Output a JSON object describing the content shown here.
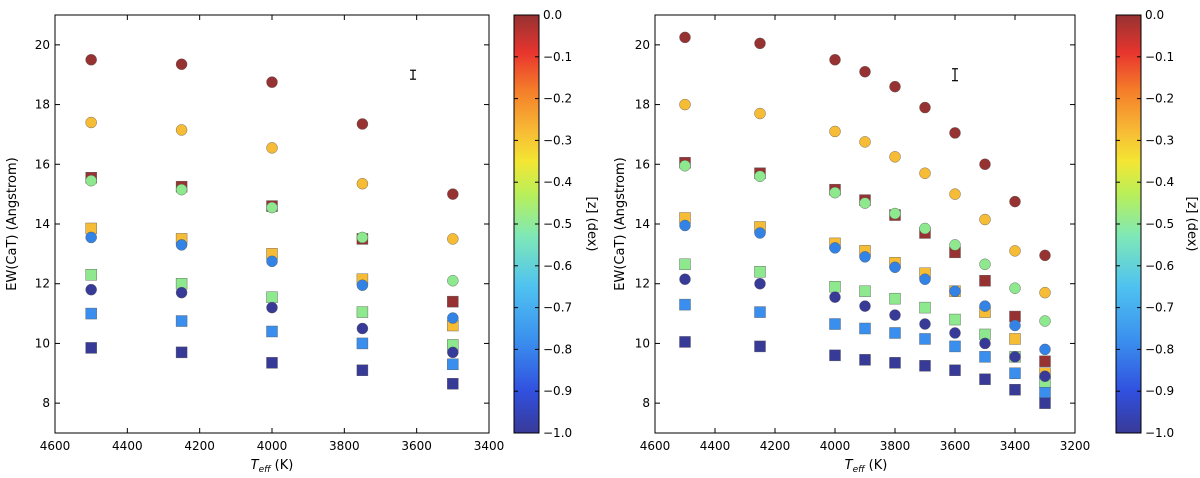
{
  "chart_data": [
    {
      "type": "scatter",
      "id": "left",
      "xlabel_main": "T",
      "xlabel_sub": "eff",
      "xlabel_unit": "(K)",
      "ylabel": "EW(CaT) (Angstrom)",
      "xlim": [
        4600,
        3400
      ],
      "ylim": [
        7,
        21
      ],
      "xticks": [
        4600,
        4400,
        4200,
        4000,
        3800,
        3600,
        3400
      ],
      "yticks": [
        8,
        10,
        12,
        14,
        16,
        18,
        20
      ],
      "errorbar": {
        "x": 3610,
        "y": 19.0,
        "dy": 0.15
      },
      "series": [
        {
          "name": "circles, z=0.0",
          "marker": "circle",
          "color": "#963232",
          "points": [
            [
              4500,
              19.5
            ],
            [
              4250,
              19.35
            ],
            [
              4000,
              18.75
            ],
            [
              3750,
              17.35
            ],
            [
              3500,
              15.0
            ]
          ]
        },
        {
          "name": "circles, z=-0.3",
          "marker": "circle",
          "color": "#f7bc35",
          "points": [
            [
              4500,
              17.4
            ],
            [
              4250,
              17.15
            ],
            [
              4000,
              16.55
            ],
            [
              3750,
              15.35
            ],
            [
              3500,
              13.5
            ]
          ]
        },
        {
          "name": "squares, z=0.0",
          "marker": "square",
          "color": "#963232",
          "points": [
            [
              4500,
              15.55
            ],
            [
              4250,
              15.25
            ],
            [
              4000,
              14.6
            ],
            [
              3750,
              13.5
            ],
            [
              3500,
              11.4
            ]
          ]
        },
        {
          "name": "circles, z=-0.5",
          "marker": "circle",
          "color": "#8ee88e",
          "points": [
            [
              4500,
              15.45
            ],
            [
              4250,
              15.15
            ],
            [
              4000,
              14.55
            ],
            [
              3750,
              13.55
            ],
            [
              3500,
              12.1
            ]
          ]
        },
        {
          "name": "squares, z=-0.3",
          "marker": "square",
          "color": "#f7bc35",
          "points": [
            [
              4500,
              13.85
            ],
            [
              4250,
              13.5
            ],
            [
              4000,
              13.0
            ],
            [
              3750,
              12.15
            ],
            [
              3500,
              10.6
            ]
          ]
        },
        {
          "name": "circles, z=-0.75",
          "marker": "circle",
          "color": "#3383e6",
          "points": [
            [
              4500,
              13.55
            ],
            [
              4250,
              13.3
            ],
            [
              4000,
              12.75
            ],
            [
              3750,
              11.95
            ],
            [
              3500,
              10.85
            ]
          ]
        },
        {
          "name": "squares, z=-0.5",
          "marker": "square",
          "color": "#8ee88e",
          "points": [
            [
              4500,
              12.3
            ],
            [
              4250,
              12.0
            ],
            [
              4000,
              11.55
            ],
            [
              3750,
              11.05
            ],
            [
              3500,
              9.95
            ]
          ]
        },
        {
          "name": "circles, z=-1.0",
          "marker": "circle",
          "color": "#383a98",
          "points": [
            [
              4500,
              11.8
            ],
            [
              4250,
              11.7
            ],
            [
              4000,
              11.2
            ],
            [
              3750,
              10.5
            ],
            [
              3500,
              9.7
            ]
          ]
        },
        {
          "name": "squares, z=-0.75",
          "marker": "square",
          "color": "#3a8fee",
          "points": [
            [
              4500,
              11.0
            ],
            [
              4250,
              10.75
            ],
            [
              4000,
              10.4
            ],
            [
              3750,
              10.0
            ],
            [
              3500,
              9.3
            ]
          ]
        },
        {
          "name": "squares, z=-1.0",
          "marker": "square",
          "color": "#383a98",
          "points": [
            [
              4500,
              9.85
            ],
            [
              4250,
              9.7
            ],
            [
              4000,
              9.35
            ],
            [
              3750,
              9.1
            ],
            [
              3500,
              8.65
            ]
          ]
        }
      ],
      "colorbar": {
        "label": "[z] (dex)",
        "ticks": [
          "0.0",
          "−0.1",
          "−0.2",
          "−0.3",
          "−0.4",
          "−0.5",
          "−0.6",
          "−0.7",
          "−0.8",
          "−0.9",
          "−1.0"
        ]
      }
    },
    {
      "type": "scatter",
      "id": "right",
      "xlabel_main": "T",
      "xlabel_sub": "eff",
      "xlabel_unit": "(K)",
      "ylabel": "EW(CaT) (Angstrom)",
      "xlim": [
        4600,
        3200
      ],
      "ylim": [
        7,
        21
      ],
      "xticks": [
        4600,
        4400,
        4200,
        4000,
        3800,
        3600,
        3400,
        3200
      ],
      "yticks": [
        8,
        10,
        12,
        14,
        16,
        18,
        20
      ],
      "errorbar": {
        "x": 3600,
        "y": 19.0,
        "dy": 0.2
      },
      "series": [
        {
          "name": "circles, z=0.0",
          "marker": "circle",
          "color": "#963232",
          "points": [
            [
              4500,
              20.25
            ],
            [
              4250,
              20.05
            ],
            [
              4000,
              19.5
            ],
            [
              3900,
              19.1
            ],
            [
              3800,
              18.6
            ],
            [
              3700,
              17.9
            ],
            [
              3600,
              17.05
            ],
            [
              3500,
              16.0
            ],
            [
              3400,
              14.75
            ],
            [
              3300,
              12.95
            ]
          ]
        },
        {
          "name": "circles, z=-0.3",
          "marker": "circle",
          "color": "#f7bc35",
          "points": [
            [
              4500,
              18.0
            ],
            [
              4250,
              17.7
            ],
            [
              4000,
              17.1
            ],
            [
              3900,
              16.75
            ],
            [
              3800,
              16.25
            ],
            [
              3700,
              15.7
            ],
            [
              3600,
              15.0
            ],
            [
              3500,
              14.15
            ],
            [
              3400,
              13.1
            ],
            [
              3300,
              11.7
            ]
          ]
        },
        {
          "name": "squares, z=0.0",
          "marker": "square",
          "color": "#963232",
          "points": [
            [
              4500,
              16.05
            ],
            [
              4250,
              15.7
            ],
            [
              4000,
              15.15
            ],
            [
              3900,
              14.8
            ],
            [
              3800,
              14.3
            ],
            [
              3700,
              13.7
            ],
            [
              3600,
              13.05
            ],
            [
              3500,
              12.1
            ],
            [
              3400,
              10.9
            ],
            [
              3300,
              9.4
            ]
          ]
        },
        {
          "name": "circles, z=-0.5",
          "marker": "circle",
          "color": "#8ee88e",
          "points": [
            [
              4500,
              15.95
            ],
            [
              4250,
              15.6
            ],
            [
              4000,
              15.05
            ],
            [
              3900,
              14.7
            ],
            [
              3800,
              14.35
            ],
            [
              3700,
              13.85
            ],
            [
              3600,
              13.3
            ],
            [
              3500,
              12.65
            ],
            [
              3400,
              11.85
            ],
            [
              3300,
              10.75
            ]
          ]
        },
        {
          "name": "squares, z=-0.3",
          "marker": "square",
          "color": "#f7bc35",
          "points": [
            [
              4500,
              14.2
            ],
            [
              4250,
              13.9
            ],
            [
              4000,
              13.35
            ],
            [
              3900,
              13.1
            ],
            [
              3800,
              12.7
            ],
            [
              3700,
              12.35
            ],
            [
              3600,
              11.75
            ],
            [
              3500,
              11.05
            ],
            [
              3400,
              10.15
            ],
            [
              3300,
              9.0
            ]
          ]
        },
        {
          "name": "circles, z=-0.75",
          "marker": "circle",
          "color": "#3383e6",
          "points": [
            [
              4500,
              13.95
            ],
            [
              4250,
              13.7
            ],
            [
              4000,
              13.2
            ],
            [
              3900,
              12.9
            ],
            [
              3800,
              12.55
            ],
            [
              3700,
              12.15
            ],
            [
              3600,
              11.75
            ],
            [
              3500,
              11.25
            ],
            [
              3400,
              10.6
            ],
            [
              3300,
              9.8
            ]
          ]
        },
        {
          "name": "squares, z=-0.5",
          "marker": "square",
          "color": "#8ee88e",
          "points": [
            [
              4500,
              12.65
            ],
            [
              4250,
              12.4
            ],
            [
              4000,
              11.9
            ],
            [
              3900,
              11.75
            ],
            [
              3800,
              11.5
            ],
            [
              3700,
              11.2
            ],
            [
              3600,
              10.8
            ],
            [
              3500,
              10.3
            ],
            [
              3400,
              9.55
            ],
            [
              3300,
              8.7
            ]
          ]
        },
        {
          "name": "circles, z=-1.0",
          "marker": "circle",
          "color": "#383a98",
          "points": [
            [
              4500,
              12.15
            ],
            [
              4250,
              12.0
            ],
            [
              4000,
              11.55
            ],
            [
              3900,
              11.25
            ],
            [
              3800,
              10.95
            ],
            [
              3700,
              10.65
            ],
            [
              3600,
              10.35
            ],
            [
              3500,
              10.0
            ],
            [
              3400,
              9.55
            ],
            [
              3300,
              8.9
            ]
          ]
        },
        {
          "name": "squares, z=-0.75",
          "marker": "square",
          "color": "#3a8fee",
          "points": [
            [
              4500,
              11.3
            ],
            [
              4250,
              11.05
            ],
            [
              4000,
              10.65
            ],
            [
              3900,
              10.5
            ],
            [
              3800,
              10.35
            ],
            [
              3700,
              10.15
            ],
            [
              3600,
              9.9
            ],
            [
              3500,
              9.55
            ],
            [
              3400,
              9.0
            ],
            [
              3300,
              8.35
            ]
          ]
        },
        {
          "name": "squares, z=-1.0",
          "marker": "square",
          "color": "#383a98",
          "points": [
            [
              4500,
              10.05
            ],
            [
              4250,
              9.9
            ],
            [
              4000,
              9.6
            ],
            [
              3900,
              9.45
            ],
            [
              3800,
              9.35
            ],
            [
              3700,
              9.25
            ],
            [
              3600,
              9.1
            ],
            [
              3500,
              8.8
            ],
            [
              3400,
              8.45
            ],
            [
              3300,
              8.0
            ]
          ]
        }
      ],
      "colorbar": {
        "label": "[z] (dex)",
        "ticks": [
          "0.0",
          "−0.1",
          "−0.2",
          "−0.3",
          "−0.4",
          "−0.5",
          "−0.6",
          "−0.7",
          "−0.8",
          "−0.9",
          "−1.0"
        ]
      }
    }
  ],
  "colormap": [
    "#383a98",
    "#3150df",
    "#3a8fee",
    "#4fc2f0",
    "#7ee8b8",
    "#b8ef5a",
    "#f4e633",
    "#f7bc35",
    "#f57d2a",
    "#e8352e",
    "#963232"
  ]
}
